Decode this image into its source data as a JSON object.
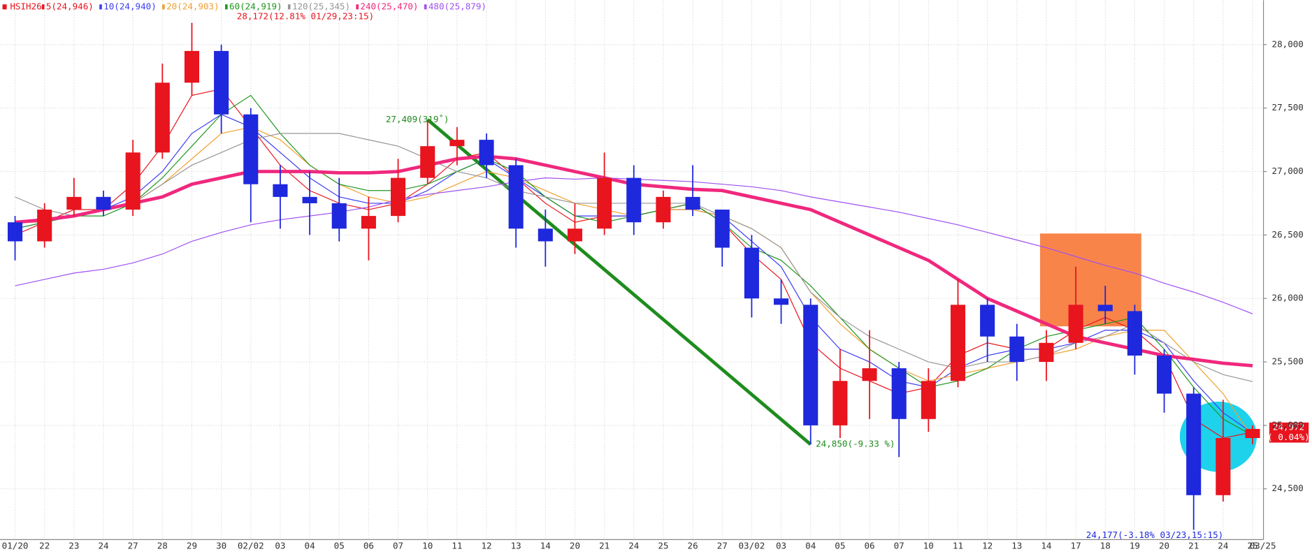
{
  "chart_data": {
    "type": "candlestick",
    "symbol": "HSIH26",
    "up_color": "#e8141e",
    "down_color": "#1e28dc",
    "categories": [
      "01/20",
      "22",
      "23",
      "24",
      "27",
      "28",
      "29",
      "30",
      "02/02",
      "03",
      "04",
      "05",
      "06",
      "07",
      "10",
      "11",
      "12",
      "13",
      "14",
      "20",
      "21",
      "24",
      "25",
      "26",
      "27",
      "03/02",
      "03",
      "04",
      "05",
      "06",
      "07",
      "10",
      "11",
      "12",
      "13",
      "14",
      "17",
      "18",
      "19",
      "20",
      "21",
      "24",
      "25"
    ],
    "last_date": "03/25",
    "ohlc": {
      "open": [
        26600,
        26450,
        26700,
        26800,
        26700,
        27150,
        27700,
        27950,
        27450,
        26900,
        26800,
        26750,
        26550,
        26650,
        26950,
        27200,
        27250,
        27050,
        26550,
        26450,
        26550,
        26950,
        26600,
        26800,
        26700,
        26400,
        26000,
        25950,
        25000,
        25350,
        25450,
        25050,
        25350,
        25950,
        25700,
        25500,
        25650,
        25950,
        25900,
        25550,
        25250,
        24450,
        24900
      ],
      "high": [
        26650,
        26750,
        26950,
        26850,
        27250,
        27850,
        28172,
        28000,
        27500,
        27050,
        27000,
        26950,
        26800,
        27100,
        27409,
        27350,
        27300,
        27100,
        26700,
        26750,
        27150,
        27050,
        26850,
        27050,
        26700,
        26500,
        26150,
        26000,
        25600,
        25750,
        25500,
        25450,
        26150,
        26000,
        25800,
        25750,
        26250,
        26100,
        25950,
        25600,
        25300,
        25200,
        25000
      ],
      "low": [
        26300,
        26400,
        26650,
        26650,
        26650,
        27100,
        27600,
        27300,
        26600,
        26550,
        26500,
        26450,
        26300,
        26600,
        26900,
        27050,
        26950,
        26400,
        26250,
        26350,
        26500,
        26500,
        26550,
        26650,
        26250,
        25850,
        25800,
        24850,
        24900,
        25050,
        24750,
        24950,
        25300,
        25500,
        25350,
        25350,
        25600,
        25800,
        25400,
        25100,
        24177,
        24400,
        24850
      ],
      "close": [
        26450,
        26700,
        26800,
        26700,
        27150,
        27700,
        27950,
        27450,
        26900,
        26800,
        26750,
        26550,
        26650,
        26950,
        27200,
        27250,
        27050,
        26550,
        26450,
        26550,
        26950,
        26600,
        26800,
        26700,
        26400,
        26000,
        25950,
        25000,
        25350,
        25450,
        25050,
        25350,
        25950,
        25700,
        25500,
        25650,
        25950,
        25900,
        25550,
        25250,
        24450,
        24900,
        24972
      ]
    },
    "series": [
      {
        "name": "5(24,946)",
        "color": "#e8141e",
        "values": [
          26500,
          26600,
          26700,
          26700,
          26900,
          27200,
          27600,
          27650,
          27350,
          27050,
          26850,
          26750,
          26700,
          26750,
          26900,
          27100,
          27150,
          26950,
          26750,
          26600,
          26650,
          26650,
          26700,
          26750,
          26600,
          26350,
          26150,
          25650,
          25450,
          25350,
          25250,
          25300,
          25550,
          25650,
          25600,
          25600,
          25750,
          25850,
          25750,
          25550,
          25050,
          24900,
          24946
        ]
      },
      {
        "name": "10(24,940)",
        "color": "#3c3cf0",
        "values": [
          26550,
          26600,
          26650,
          26700,
          26800,
          27000,
          27300,
          27450,
          27350,
          27150,
          26950,
          26800,
          26750,
          26750,
          26850,
          27000,
          27100,
          26950,
          26800,
          26650,
          26650,
          26650,
          26700,
          26700,
          26650,
          26450,
          26250,
          25850,
          25600,
          25500,
          25350,
          25300,
          25450,
          25550,
          25600,
          25600,
          25650,
          25750,
          25750,
          25650,
          25350,
          25100,
          24940
        ]
      },
      {
        "name": "20(24,903)",
        "color": "#f0a030",
        "values": [
          26600,
          26600,
          26650,
          26700,
          26750,
          26900,
          27100,
          27300,
          27350,
          27250,
          27050,
          26900,
          26800,
          26750,
          26800,
          26900,
          27000,
          26950,
          26850,
          26750,
          26700,
          26650,
          26700,
          26700,
          26650,
          26550,
          26400,
          26050,
          25800,
          25600,
          25450,
          25350,
          25400,
          25450,
          25500,
          25550,
          25600,
          25700,
          25750,
          25750,
          25500,
          25250,
          24903
        ]
      },
      {
        "name": "60(24,919)",
        "color": "#1e961e",
        "values": [
          26550,
          26600,
          26650,
          26650,
          26750,
          26950,
          27200,
          27450,
          27600,
          27300,
          27050,
          26900,
          26850,
          26850,
          26900,
          27000,
          27100,
          27000,
          26800,
          26650,
          26600,
          26650,
          26700,
          26750,
          26600,
          26400,
          26300,
          26100,
          25850,
          25600,
          25450,
          25300,
          25350,
          25450,
          25600,
          25700,
          25750,
          25800,
          25850,
          25600,
          25300,
          25050,
          24919
        ]
      },
      {
        "name": "120(25,345)",
        "color": "#969696",
        "values": [
          26800,
          26700,
          26650,
          26700,
          26750,
          26900,
          27050,
          27150,
          27250,
          27300,
          27300,
          27300,
          27250,
          27200,
          27100,
          27000,
          26950,
          26850,
          26800,
          26750,
          26750,
          26750,
          26750,
          26750,
          26650,
          26550,
          26400,
          26050,
          25850,
          25700,
          25600,
          25500,
          25450,
          25500,
          25500,
          25550,
          25650,
          25700,
          25800,
          25650,
          25500,
          25400,
          25345
        ]
      },
      {
        "name": "240(25,470)",
        "color": "#f0287d",
        "width": 4,
        "values": [
          26600,
          26620,
          26650,
          26700,
          26750,
          26800,
          26900,
          26950,
          27000,
          27000,
          27000,
          26990,
          26990,
          27000,
          27050,
          27100,
          27120,
          27100,
          27050,
          27000,
          26950,
          26900,
          26880,
          26860,
          26850,
          26800,
          26750,
          26700,
          26600,
          26500,
          26400,
          26300,
          26150,
          26000,
          25900,
          25800,
          25700,
          25650,
          25600,
          25550,
          25520,
          25490,
          25470
        ]
      },
      {
        "name": "480(25,879)",
        "color": "#a050f0",
        "values": [
          26100,
          26150,
          26200,
          26230,
          26280,
          26350,
          26450,
          26520,
          26580,
          26620,
          26650,
          26680,
          26720,
          26780,
          26820,
          26850,
          26880,
          26920,
          26950,
          26940,
          26950,
          26940,
          26930,
          26920,
          26900,
          26880,
          26850,
          26800,
          26760,
          26720,
          26680,
          26630,
          26580,
          26520,
          26460,
          26400,
          26330,
          26260,
          26200,
          26120,
          26050,
          25970,
          25879
        ]
      }
    ],
    "ylim": [
      24100,
      28350
    ],
    "yticks": [
      {
        "value": 24500,
        "label": "24,500"
      },
      {
        "value": 25000,
        "label": "25,000"
      },
      {
        "value": 25500,
        "label": "25,500"
      },
      {
        "value": 26000,
        "label": "26,000"
      },
      {
        "value": 26500,
        "label": "26,500"
      },
      {
        "value": 27000,
        "label": "27,000"
      },
      {
        "value": 27500,
        "label": "27,500"
      },
      {
        "value": 28000,
        "label": "28,000"
      }
    ],
    "grid": true,
    "annotations": [
      {
        "text": "28,172(12.81% 01/29,23:15)",
        "color": "#e8141e"
      },
      {
        "text": "27,409(319˚)",
        "color": "#1e8c1e"
      },
      {
        "text": "24,850(-9.33 %)",
        "color": "#1e8c1e"
      },
      {
        "text": "24,177(-3.18% 03/23,15:15)",
        "color": "#1e28dc"
      }
    ],
    "last_price": {
      "value": 24972,
      "label": "24,972",
      "change": "( 0.04%)",
      "color": "#e8141e"
    }
  }
}
